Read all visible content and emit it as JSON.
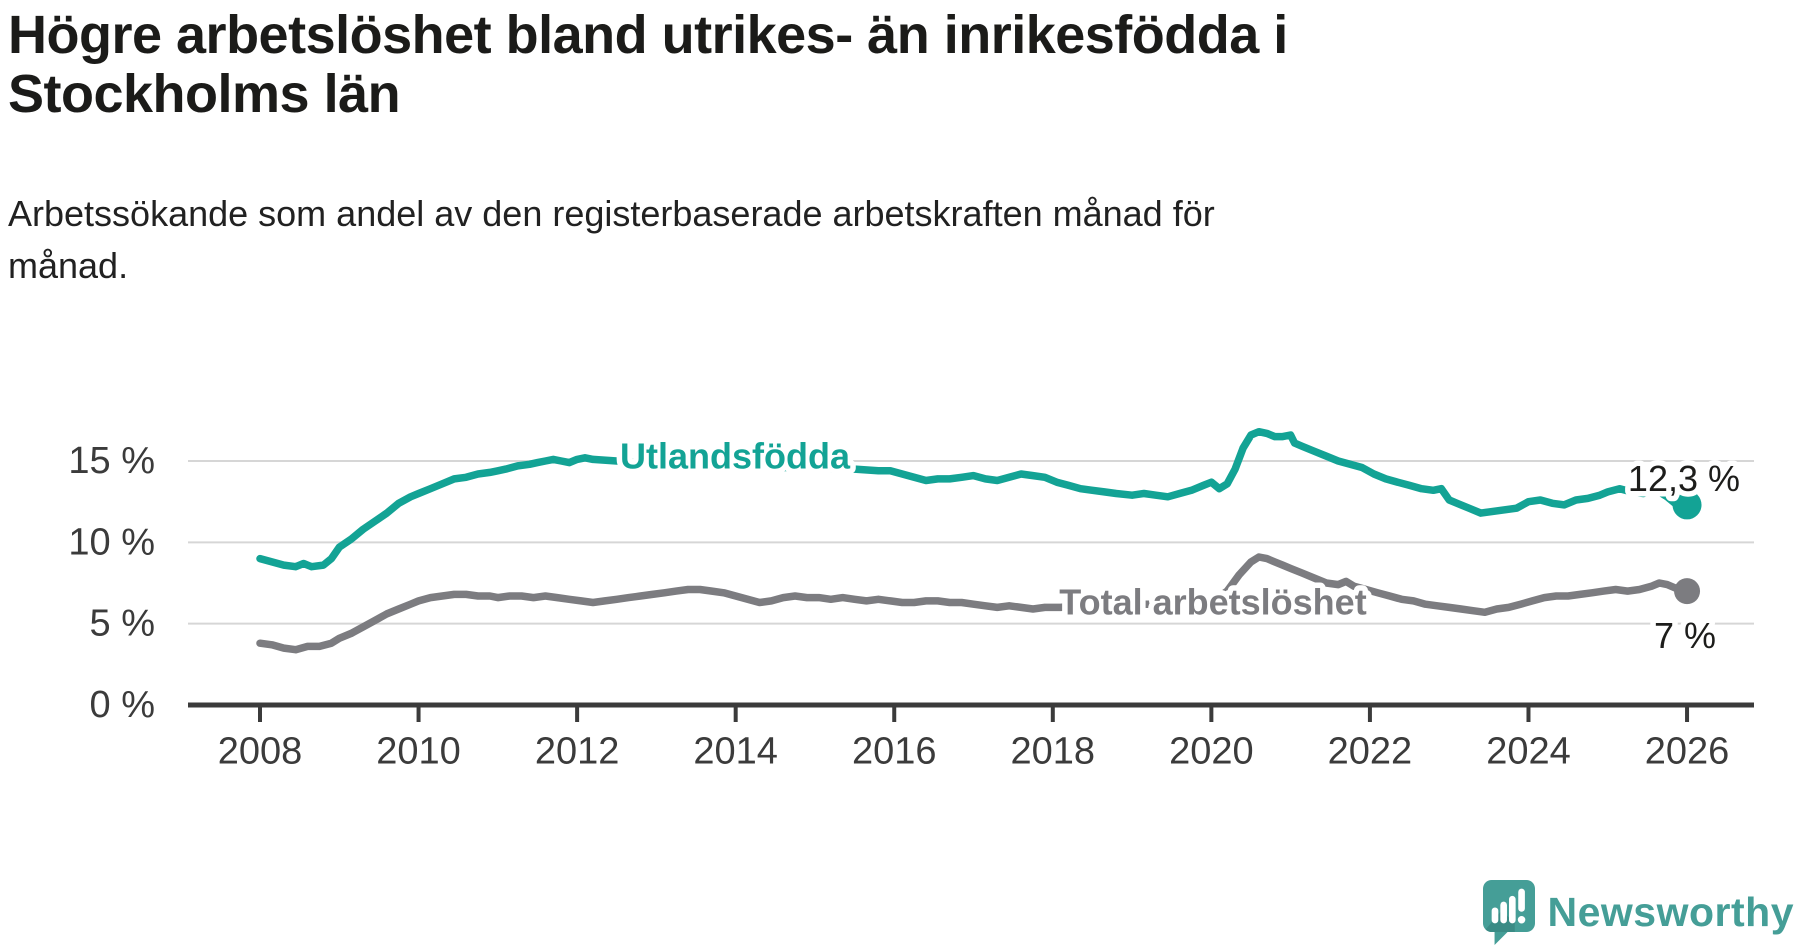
{
  "header": {
    "title_line1": "Högre arbetslöshet bland utrikes- än inrikesfödda i",
    "title_line2": "Stockholms län",
    "subtitle_line1": "Arbetssökande som andel av den registerbaserade arbetskraften månad för",
    "subtitle_line2": "månad."
  },
  "chart_data": {
    "type": "line",
    "title": "Högre arbetslöshet bland utrikes- än inrikesfödda i Stockholms län",
    "subtitle": "Arbetssökande som andel av den registerbaserade arbetskraften månad för månad.",
    "unit": "%",
    "grid": "horizontal",
    "x_axis": {
      "ticks": [
        2008,
        2010,
        2012,
        2014,
        2016,
        2018,
        2020,
        2022,
        2024,
        2026
      ],
      "tick_labels": [
        "2008",
        "2010",
        "2012",
        "2014",
        "2016",
        "2018",
        "2020",
        "2022",
        "2024",
        "2026"
      ],
      "range": [
        2007.1,
        2026.85
      ]
    },
    "y_axis": {
      "ticks": [
        0,
        5,
        10,
        15
      ],
      "tick_labels": [
        "0 %",
        "5 %",
        "10 %",
        "15 %"
      ],
      "range": [
        0,
        17.6
      ]
    },
    "series": [
      {
        "name": "Utlandsfödda",
        "slug": "utlandsfodda",
        "color": "#13a395",
        "end_value": 12.3,
        "end_label": "12,3 %",
        "points": [
          [
            2008.0,
            9.0
          ],
          [
            2008.15,
            8.8
          ],
          [
            2008.3,
            8.6
          ],
          [
            2008.45,
            8.5
          ],
          [
            2008.55,
            8.7
          ],
          [
            2008.65,
            8.5
          ],
          [
            2008.8,
            8.6
          ],
          [
            2008.9,
            9.0
          ],
          [
            2009.0,
            9.7
          ],
          [
            2009.15,
            10.2
          ],
          [
            2009.3,
            10.8
          ],
          [
            2009.45,
            11.3
          ],
          [
            2009.6,
            11.8
          ],
          [
            2009.75,
            12.4
          ],
          [
            2009.9,
            12.8
          ],
          [
            2010.0,
            13.0
          ],
          [
            2010.15,
            13.3
          ],
          [
            2010.3,
            13.6
          ],
          [
            2010.45,
            13.9
          ],
          [
            2010.6,
            14.0
          ],
          [
            2010.75,
            14.2
          ],
          [
            2010.9,
            14.3
          ],
          [
            2011.0,
            14.4
          ],
          [
            2011.1,
            14.5
          ],
          [
            2011.25,
            14.7
          ],
          [
            2011.4,
            14.8
          ],
          [
            2011.5,
            14.9
          ],
          [
            2011.6,
            15.0
          ],
          [
            2011.7,
            15.1
          ],
          [
            2011.8,
            15.0
          ],
          [
            2011.9,
            14.9
          ],
          [
            2012.0,
            15.1
          ],
          [
            2012.1,
            15.2
          ],
          [
            2012.2,
            15.1
          ],
          [
            2012.5,
            15.0
          ],
          [
            2012.8,
            14.9
          ],
          [
            2013.1,
            14.9
          ],
          [
            2013.4,
            15.0
          ],
          [
            2013.7,
            14.9
          ],
          [
            2014.0,
            14.8
          ],
          [
            2014.3,
            14.7
          ],
          [
            2014.6,
            14.6
          ],
          [
            2014.9,
            14.6
          ],
          [
            2015.2,
            14.5
          ],
          [
            2015.5,
            14.5
          ],
          [
            2015.8,
            14.4
          ],
          [
            2015.95,
            14.4
          ],
          [
            2016.1,
            14.2
          ],
          [
            2016.25,
            14.0
          ],
          [
            2016.4,
            13.8
          ],
          [
            2016.55,
            13.9
          ],
          [
            2016.7,
            13.9
          ],
          [
            2016.85,
            14.0
          ],
          [
            2017.0,
            14.1
          ],
          [
            2017.15,
            13.9
          ],
          [
            2017.3,
            13.8
          ],
          [
            2017.45,
            14.0
          ],
          [
            2017.6,
            14.2
          ],
          [
            2017.75,
            14.1
          ],
          [
            2017.9,
            14.0
          ],
          [
            2018.05,
            13.7
          ],
          [
            2018.2,
            13.5
          ],
          [
            2018.35,
            13.3
          ],
          [
            2018.5,
            13.2
          ],
          [
            2018.65,
            13.1
          ],
          [
            2018.8,
            13.0
          ],
          [
            2019.0,
            12.9
          ],
          [
            2019.15,
            13.0
          ],
          [
            2019.3,
            12.9
          ],
          [
            2019.45,
            12.8
          ],
          [
            2019.6,
            13.0
          ],
          [
            2019.75,
            13.2
          ],
          [
            2019.9,
            13.5
          ],
          [
            2020.0,
            13.7
          ],
          [
            2020.1,
            13.3
          ],
          [
            2020.2,
            13.6
          ],
          [
            2020.3,
            14.5
          ],
          [
            2020.4,
            15.8
          ],
          [
            2020.5,
            16.6
          ],
          [
            2020.6,
            16.8
          ],
          [
            2020.7,
            16.7
          ],
          [
            2020.8,
            16.5
          ],
          [
            2020.9,
            16.5
          ],
          [
            2021.0,
            16.6
          ],
          [
            2021.05,
            16.1
          ],
          [
            2021.15,
            15.9
          ],
          [
            2021.3,
            15.6
          ],
          [
            2021.45,
            15.3
          ],
          [
            2021.6,
            15.0
          ],
          [
            2021.75,
            14.8
          ],
          [
            2021.9,
            14.6
          ],
          [
            2022.05,
            14.2
          ],
          [
            2022.2,
            13.9
          ],
          [
            2022.35,
            13.7
          ],
          [
            2022.5,
            13.5
          ],
          [
            2022.65,
            13.3
          ],
          [
            2022.8,
            13.2
          ],
          [
            2022.9,
            13.3
          ],
          [
            2023.0,
            12.6
          ],
          [
            2023.1,
            12.4
          ],
          [
            2023.25,
            12.1
          ],
          [
            2023.4,
            11.8
          ],
          [
            2023.55,
            11.9
          ],
          [
            2023.7,
            12.0
          ],
          [
            2023.85,
            12.1
          ],
          [
            2024.0,
            12.5
          ],
          [
            2024.15,
            12.6
          ],
          [
            2024.3,
            12.4
          ],
          [
            2024.45,
            12.3
          ],
          [
            2024.6,
            12.6
          ],
          [
            2024.75,
            12.7
          ],
          [
            2024.9,
            12.9
          ],
          [
            2025.0,
            13.1
          ],
          [
            2025.15,
            13.3
          ],
          [
            2025.3,
            13.1
          ],
          [
            2025.45,
            13.0
          ],
          [
            2025.55,
            13.2
          ],
          [
            2025.65,
            13.1
          ],
          [
            2025.75,
            12.8
          ],
          [
            2025.85,
            12.4
          ],
          [
            2025.95,
            12.1
          ],
          [
            2026.0,
            12.3
          ]
        ]
      },
      {
        "name": "Total arbetslöshet",
        "slug": "total-arbetsloshet",
        "color": "#7c7c80",
        "end_value": 7.0,
        "end_label": "7 %",
        "points": [
          [
            2008.0,
            3.8
          ],
          [
            2008.15,
            3.7
          ],
          [
            2008.3,
            3.5
          ],
          [
            2008.45,
            3.4
          ],
          [
            2008.6,
            3.6
          ],
          [
            2008.75,
            3.6
          ],
          [
            2008.9,
            3.8
          ],
          [
            2009.0,
            4.1
          ],
          [
            2009.15,
            4.4
          ],
          [
            2009.3,
            4.8
          ],
          [
            2009.45,
            5.2
          ],
          [
            2009.6,
            5.6
          ],
          [
            2009.75,
            5.9
          ],
          [
            2009.9,
            6.2
          ],
          [
            2010.0,
            6.4
          ],
          [
            2010.15,
            6.6
          ],
          [
            2010.3,
            6.7
          ],
          [
            2010.45,
            6.8
          ],
          [
            2010.6,
            6.8
          ],
          [
            2010.75,
            6.7
          ],
          [
            2010.9,
            6.7
          ],
          [
            2011.0,
            6.6
          ],
          [
            2011.15,
            6.7
          ],
          [
            2011.3,
            6.7
          ],
          [
            2011.45,
            6.6
          ],
          [
            2011.6,
            6.7
          ],
          [
            2011.75,
            6.6
          ],
          [
            2011.9,
            6.5
          ],
          [
            2012.05,
            6.4
          ],
          [
            2012.2,
            6.3
          ],
          [
            2012.35,
            6.4
          ],
          [
            2012.5,
            6.5
          ],
          [
            2012.65,
            6.6
          ],
          [
            2012.8,
            6.7
          ],
          [
            2012.95,
            6.8
          ],
          [
            2013.1,
            6.9
          ],
          [
            2013.25,
            7.0
          ],
          [
            2013.4,
            7.1
          ],
          [
            2013.55,
            7.1
          ],
          [
            2013.7,
            7.0
          ],
          [
            2013.85,
            6.9
          ],
          [
            2014.0,
            6.7
          ],
          [
            2014.15,
            6.5
          ],
          [
            2014.3,
            6.3
          ],
          [
            2014.45,
            6.4
          ],
          [
            2014.6,
            6.6
          ],
          [
            2014.75,
            6.7
          ],
          [
            2014.9,
            6.6
          ],
          [
            2015.05,
            6.6
          ],
          [
            2015.2,
            6.5
          ],
          [
            2015.35,
            6.6
          ],
          [
            2015.5,
            6.5
          ],
          [
            2015.65,
            6.4
          ],
          [
            2015.8,
            6.5
          ],
          [
            2015.95,
            6.4
          ],
          [
            2016.1,
            6.3
          ],
          [
            2016.25,
            6.3
          ],
          [
            2016.4,
            6.4
          ],
          [
            2016.55,
            6.4
          ],
          [
            2016.7,
            6.3
          ],
          [
            2016.85,
            6.3
          ],
          [
            2017.0,
            6.2
          ],
          [
            2017.15,
            6.1
          ],
          [
            2017.3,
            6.0
          ],
          [
            2017.45,
            6.1
          ],
          [
            2017.6,
            6.0
          ],
          [
            2017.75,
            5.9
          ],
          [
            2017.9,
            6.0
          ],
          [
            2018.1,
            6.0
          ],
          [
            2018.3,
            6.1
          ],
          [
            2018.5,
            6.0
          ],
          [
            2018.7,
            6.1
          ],
          [
            2018.9,
            6.1
          ],
          [
            2019.1,
            6.2
          ],
          [
            2019.3,
            6.2
          ],
          [
            2019.5,
            6.2
          ],
          [
            2019.7,
            6.3
          ],
          [
            2019.9,
            6.3
          ],
          [
            2020.05,
            6.5
          ],
          [
            2020.2,
            7.0
          ],
          [
            2020.35,
            8.0
          ],
          [
            2020.5,
            8.8
          ],
          [
            2020.6,
            9.1
          ],
          [
            2020.7,
            9.0
          ],
          [
            2020.8,
            8.8
          ],
          [
            2020.9,
            8.6
          ],
          [
            2021.0,
            8.4
          ],
          [
            2021.15,
            8.1
          ],
          [
            2021.3,
            7.8
          ],
          [
            2021.45,
            7.5
          ],
          [
            2021.6,
            7.4
          ],
          [
            2021.7,
            7.6
          ],
          [
            2021.8,
            7.3
          ],
          [
            2021.95,
            7.1
          ],
          [
            2022.1,
            6.9
          ],
          [
            2022.25,
            6.7
          ],
          [
            2022.4,
            6.5
          ],
          [
            2022.55,
            6.4
          ],
          [
            2022.7,
            6.2
          ],
          [
            2022.85,
            6.1
          ],
          [
            2023.0,
            6.0
          ],
          [
            2023.15,
            5.9
          ],
          [
            2023.3,
            5.8
          ],
          [
            2023.45,
            5.7
          ],
          [
            2023.6,
            5.9
          ],
          [
            2023.75,
            6.0
          ],
          [
            2023.9,
            6.2
          ],
          [
            2024.05,
            6.4
          ],
          [
            2024.2,
            6.6
          ],
          [
            2024.35,
            6.7
          ],
          [
            2024.5,
            6.7
          ],
          [
            2024.65,
            6.8
          ],
          [
            2024.8,
            6.9
          ],
          [
            2024.95,
            7.0
          ],
          [
            2025.1,
            7.1
          ],
          [
            2025.25,
            7.0
          ],
          [
            2025.4,
            7.1
          ],
          [
            2025.55,
            7.3
          ],
          [
            2025.65,
            7.5
          ],
          [
            2025.75,
            7.4
          ],
          [
            2025.85,
            7.2
          ],
          [
            2026.0,
            7.0
          ]
        ]
      }
    ],
    "legend_position": "inline-labels"
  },
  "colors": {
    "teal_line": "#13a395",
    "gray_line": "#7c7c80",
    "gridline": "#d6d6d6",
    "axis": "#3b3b3b",
    "text_dark": "#1b1b19",
    "logo_teal": "#459e97"
  },
  "branding": {
    "logo_text": "Newsworthy",
    "logo_icon": "bar-chart-speech-bubble"
  }
}
